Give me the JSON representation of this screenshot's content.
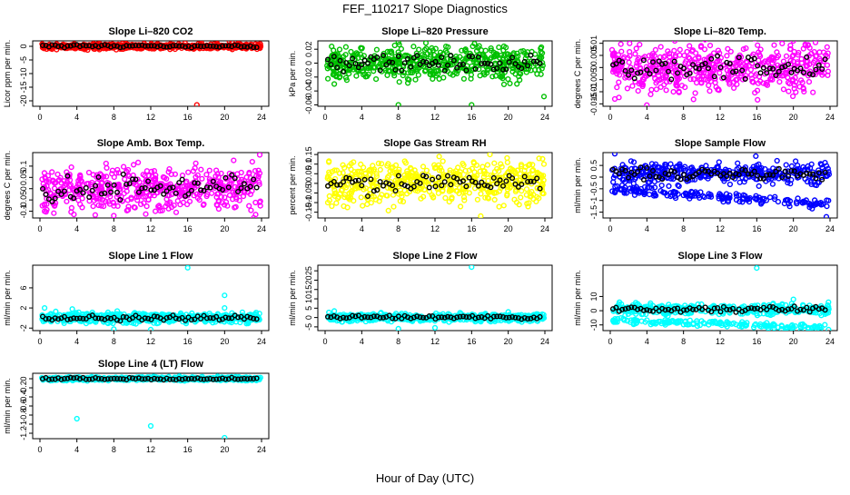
{
  "figure": {
    "title": "FEF_110217  Slope Diagnostics",
    "xlabel": "Hour of Day (UTC)"
  },
  "series_colors": {
    "points_default": "#000000",
    "co2": "#ff0000",
    "pressure": "#00c000",
    "temp": "#ff00ff",
    "rh": "#ffff00",
    "flow": "#0000ff",
    "line": "#00ffff"
  },
  "chart_data": [
    {
      "type": "scatter",
      "title": "Slope Li–820 CO2",
      "ylabel": "Licor ppm per min.",
      "color": "#ff0000",
      "xlim": [
        0,
        24
      ],
      "ylim": [
        -22,
        2
      ],
      "xticks": [
        0,
        4,
        8,
        12,
        16,
        20,
        24
      ],
      "yticks": [
        0,
        -5,
        -10,
        -15,
        -20
      ],
      "base": 0.0,
      "spread": 0.5,
      "secondary": null,
      "outliers": [
        [
          17.0,
          -21.5
        ],
        [
          17.5,
          1.2
        ],
        [
          20.5,
          2.0
        ],
        [
          20.8,
          1.6
        ],
        [
          19.2,
          1.0
        ],
        [
          1.8,
          -1.2
        ]
      ]
    },
    {
      "type": "scatter",
      "title": "Slope Li–820 Pressure",
      "ylabel": "kPa per min.",
      "color": "#00c000",
      "xlim": [
        0,
        24
      ],
      "ylim": [
        -0.062,
        0.032
      ],
      "xticks": [
        0,
        4,
        8,
        12,
        16,
        20,
        24
      ],
      "yticks": [
        0.02,
        0.0,
        -0.02,
        -0.04,
        -0.06
      ],
      "base": 0.0,
      "spread": 0.012,
      "secondary": null,
      "outliers": [
        [
          8.0,
          0.03
        ],
        [
          8.0,
          -0.06
        ],
        [
          16.0,
          -0.06
        ],
        [
          23.9,
          -0.048
        ],
        [
          1.0,
          -0.03
        ]
      ]
    },
    {
      "type": "scatter",
      "title": "Slope Li–820 Temp.",
      "ylabel": "degrees C per min.",
      "color": "#ff00ff",
      "xlim": [
        0,
        24
      ],
      "ylim": [
        -0.016,
        0.011
      ],
      "xticks": [
        0,
        4,
        8,
        12,
        16,
        20,
        24
      ],
      "yticks": [
        0.01,
        0.005,
        0.0,
        -0.005,
        -0.01,
        -0.015
      ],
      "base": 0.0,
      "spread": 0.005,
      "secondary": null,
      "outliers": [
        [
          4.0,
          -0.0155
        ],
        [
          20.0,
          0.011
        ],
        [
          0.5,
          -0.013
        ]
      ]
    },
    {
      "type": "scatter",
      "title": "Slope Amb. Box Temp.",
      "ylabel": "degrees C per min.",
      "color": "#ff00ff",
      "xlim": [
        0,
        24
      ],
      "ylim": [
        -0.13,
        0.16
      ],
      "xticks": [
        0,
        4,
        8,
        12,
        16,
        20,
        24
      ],
      "yticks": [
        0.1,
        0.05,
        0.0,
        -0.05,
        -0.1
      ],
      "base": 0.0,
      "spread": 0.05,
      "secondary": null,
      "outliers": [
        [
          8.0,
          -0.12
        ],
        [
          23.8,
          0.15
        ],
        [
          0.5,
          -0.1
        ],
        [
          12.5,
          -0.1
        ]
      ]
    },
    {
      "type": "scatter",
      "title": "Slope Gas Stream RH",
      "ylabel": "percent per min.",
      "color": "#ffff00",
      "xlim": [
        0,
        24
      ],
      "ylim": [
        -0.18,
        0.16
      ],
      "xticks": [
        0,
        4,
        8,
        12,
        16,
        20,
        24
      ],
      "yticks": [
        0.15,
        0.1,
        0.05,
        0.0,
        -0.05,
        -0.1,
        -0.15
      ],
      "base": 0.0,
      "spread": 0.055,
      "secondary": null,
      "outliers": [
        [
          18.0,
          0.15
        ],
        [
          17.0,
          -0.17
        ],
        [
          23.9,
          0.1
        ],
        [
          0.3,
          -0.1
        ]
      ]
    },
    {
      "type": "scatter",
      "title": "Slope Sample Flow",
      "ylabel": "ml/min per min.",
      "color": "#0000ff",
      "xlim": [
        0,
        24
      ],
      "ylim": [
        -1.75,
        1.05
      ],
      "xticks": [
        0,
        4,
        8,
        12,
        16,
        20,
        24
      ],
      "yticks": [
        0.5,
        0.0,
        -0.5,
        -1.0,
        -1.5
      ],
      "base": 0.15,
      "spread": 0.22,
      "secondary": {
        "start": -0.5,
        "end": -1.2,
        "spread": 0.12
      },
      "outliers": [
        [
          23.6,
          -1.7
        ],
        [
          0.5,
          1.0
        ],
        [
          15.9,
          0.9
        ]
      ]
    },
    {
      "type": "scatter",
      "title": "Slope Line 1 Flow",
      "ylabel": "ml/min per min.",
      "color": "#00ffff",
      "xlim": [
        0,
        24
      ],
      "ylim": [
        -2.5,
        10.5
      ],
      "xticks": [
        0,
        4,
        8,
        12,
        16,
        20,
        24
      ],
      "yticks": [
        6,
        2,
        -2
      ],
      "base": 0.0,
      "spread": 0.5,
      "secondary": null,
      "outliers": [
        [
          16.0,
          10.0
        ],
        [
          20.0,
          4.5
        ],
        [
          8.0,
          -2.2
        ],
        [
          12.0,
          -2.3
        ],
        [
          20.0,
          2.0
        ],
        [
          0.5,
          2.0
        ],
        [
          3.5,
          1.8
        ]
      ]
    },
    {
      "type": "scatter",
      "title": "Slope Line 2 Flow",
      "ylabel": "ml/min per min.",
      "color": "#00ffff",
      "xlim": [
        0,
        24
      ],
      "ylim": [
        -7,
        28
      ],
      "xticks": [
        0,
        4,
        8,
        12,
        16,
        20,
        24
      ],
      "yticks": [
        25,
        20,
        15,
        10,
        5,
        0,
        -5
      ],
      "base": 0.0,
      "spread": 1.0,
      "secondary": null,
      "outliers": [
        [
          16.0,
          27.0
        ],
        [
          1.0,
          3.5
        ],
        [
          8.0,
          -6.0
        ],
        [
          12.0,
          -5.5
        ],
        [
          20.0,
          3.0
        ]
      ]
    },
    {
      "type": "scatter",
      "title": "Slope Line 3 Flow",
      "ylabel": "ml/min per min.",
      "color": "#00ffff",
      "xlim": [
        0,
        24
      ],
      "ylim": [
        -14,
        32
      ],
      "xticks": [
        0,
        4,
        8,
        12,
        16,
        20,
        24
      ],
      "yticks": [
        10,
        0,
        -10
      ],
      "base": 1.0,
      "spread": 2.0,
      "secondary": {
        "start": -7.0,
        "end": -12.0,
        "spread": 1.2
      },
      "outliers": [
        [
          16.0,
          30.0
        ],
        [
          20.0,
          8.0
        ],
        [
          1.0,
          6.0
        ]
      ]
    },
    {
      "type": "scatter",
      "title": "Slope Line 4 (LT) Flow",
      "ylabel": "ml/min per min.",
      "color": "#00ffff",
      "xlim": [
        0,
        24
      ],
      "ylim": [
        -1.32,
        0.12
      ],
      "xticks": [
        0,
        4,
        8,
        12,
        16,
        20,
        24
      ],
      "yticks": [
        0.0,
        -0.2,
        -0.4,
        -0.6,
        -0.8,
        -1.0,
        -1.2
      ],
      "base": 0.0,
      "spread": 0.02,
      "secondary": null,
      "outliers": [
        [
          4.0,
          -0.88
        ],
        [
          12.0,
          -1.04
        ],
        [
          20.0,
          -1.3
        ]
      ]
    }
  ]
}
